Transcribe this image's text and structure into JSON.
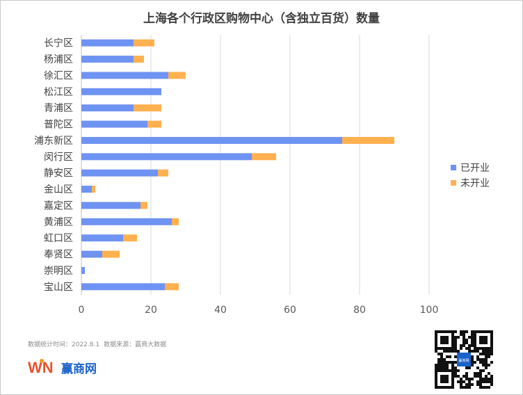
{
  "title": "上海各个行政区购物中心（含独立百货）数量",
  "chart_data": {
    "type": "bar",
    "orientation": "horizontal",
    "stacked": true,
    "categories": [
      "长宁区",
      "杨浦区",
      "徐汇区",
      "松江区",
      "青浦区",
      "普陀区",
      "浦东新区",
      "闵行区",
      "静安区",
      "金山区",
      "嘉定区",
      "黄浦区",
      "虹口区",
      "奉贤区",
      "崇明区",
      "宝山区"
    ],
    "series": [
      {
        "name": "已开业",
        "color": "#6f93f2",
        "values": [
          15,
          15,
          25,
          23,
          15,
          19,
          75,
          49,
          22,
          3,
          17,
          26,
          12,
          6,
          1,
          24
        ]
      },
      {
        "name": "未开业",
        "color": "#ffb04f",
        "values": [
          6,
          3,
          5,
          0,
          8,
          4,
          15,
          7,
          3,
          1,
          2,
          2,
          4,
          5,
          0,
          4
        ]
      }
    ],
    "xlim": [
      0,
      100
    ],
    "xticks": [
      0,
      20,
      40,
      60,
      80,
      100
    ],
    "grid": true,
    "legend_position": "right"
  },
  "footer": {
    "stats_time": "数据统计时间：2022.8.1",
    "source": "数据来源：赢商大数据"
  },
  "brand": {
    "name": "赢商网",
    "logo_letters": "WN"
  },
  "qr_badge": "赢商网"
}
